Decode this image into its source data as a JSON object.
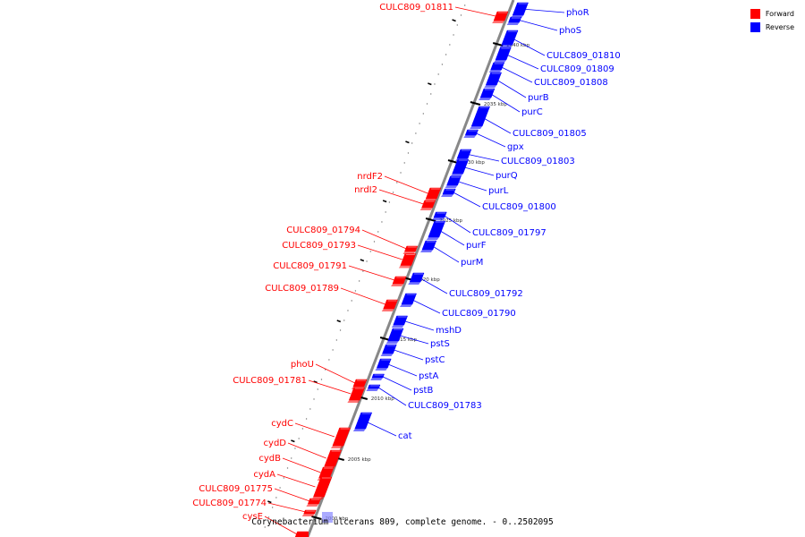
{
  "caption": "Corynebacterium ulcerans 809, complete genome. - 0..2502095",
  "legend": {
    "forward_label": "Forward",
    "reverse_label": "Reverse",
    "forward_color": "#ff0000",
    "reverse_color": "#0000ff"
  },
  "ticks": [
    "2040 kbp",
    "2035 kbp",
    "2030 kbp",
    "2025 kbp",
    "2020 kbp",
    "2015 kbp",
    "2010 kbp",
    "2005 kbp",
    "2000 kbp"
  ],
  "forward_genes": [
    "CULC809_01811",
    "nrdF2",
    "nrdI2",
    "CULC809_01794",
    "CULC809_01793",
    "CULC809_01791",
    "CULC809_01789",
    "phoU",
    "CULC809_01781",
    "cydC",
    "cydD",
    "cydB",
    "cydA",
    "CULC809_01775",
    "CULC809_01774",
    "cysE"
  ],
  "reverse_genes": [
    "phoR",
    "phoS",
    "CULC809_01810",
    "CULC809_01809",
    "CULC809_01808",
    "purB",
    "purC",
    "CULC809_01805",
    "gpx",
    "CULC809_01803",
    "purQ",
    "purL",
    "CULC809_01800",
    "CULC809_01797",
    "purF",
    "purM",
    "CULC809_01792",
    "CULC809_01790",
    "mshD",
    "pstS",
    "pstC",
    "pstA",
    "pstB",
    "CULC809_01783",
    "cat"
  ]
}
